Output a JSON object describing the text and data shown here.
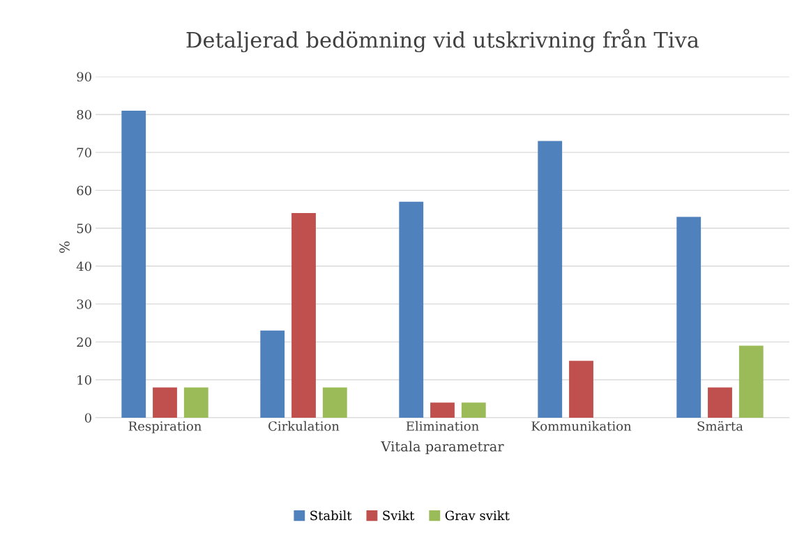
{
  "chart_data": {
    "type": "bar",
    "title": "Detaljerad bedömning vid utskrivning från Tiva",
    "xlabel": "Vitala parametrar",
    "ylabel": "%",
    "categories": [
      "Respiration",
      "Cirkulation",
      "Elimination",
      "Kommunikation",
      "Smärta"
    ],
    "series": [
      {
        "name": "Stabilt",
        "color": "#4f81bd",
        "values": [
          81,
          23,
          57,
          73,
          53
        ]
      },
      {
        "name": "Svikt",
        "color": "#c0504d",
        "values": [
          8,
          54,
          4,
          15,
          8
        ]
      },
      {
        "name": "Grav svikt",
        "color": "#9bbb59",
        "values": [
          8,
          8,
          4,
          null,
          19
        ]
      }
    ],
    "ylim": [
      0,
      90
    ],
    "yticks": [
      0,
      10,
      20,
      30,
      40,
      50,
      60,
      70,
      80,
      90
    ],
    "grid": "y",
    "legend": "bottom"
  }
}
